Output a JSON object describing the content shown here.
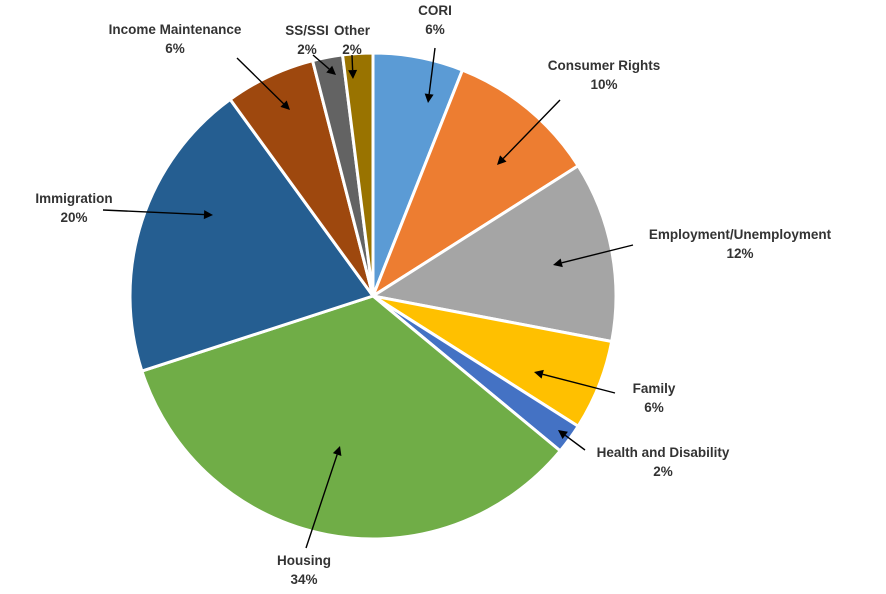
{
  "chart_data": {
    "type": "pie",
    "title": "",
    "slices": [
      {
        "label": "CORI",
        "value": 6,
        "pct_label": "6%",
        "color": "#5B9BD5"
      },
      {
        "label": "Consumer Rights",
        "value": 10,
        "pct_label": "10%",
        "color": "#ED7D31"
      },
      {
        "label": "Employment/Unemployment",
        "value": 12,
        "pct_label": "12%",
        "color": "#A5A5A5"
      },
      {
        "label": "Family",
        "value": 6,
        "pct_label": "6%",
        "color": "#FFC000"
      },
      {
        "label": "Health and Disability",
        "value": 2,
        "pct_label": "2%",
        "color": "#4472C4"
      },
      {
        "label": "Housing",
        "value": 34,
        "pct_label": "34%",
        "color": "#70AD47"
      },
      {
        "label": "Immigration",
        "value": 20,
        "pct_label": "20%",
        "color": "#255E91"
      },
      {
        "label": "Income Maintenance",
        "value": 6,
        "pct_label": "6%",
        "color": "#9E480E"
      },
      {
        "label": "SS/SSI",
        "value": 2,
        "pct_label": "2%",
        "color": "#636363"
      },
      {
        "label": "Other",
        "value": 2,
        "pct_label": "2%",
        "color": "#997300"
      }
    ],
    "start_angle_deg": 0,
    "direction": "clockwise",
    "labels_outside": true,
    "leader_lines": true
  }
}
